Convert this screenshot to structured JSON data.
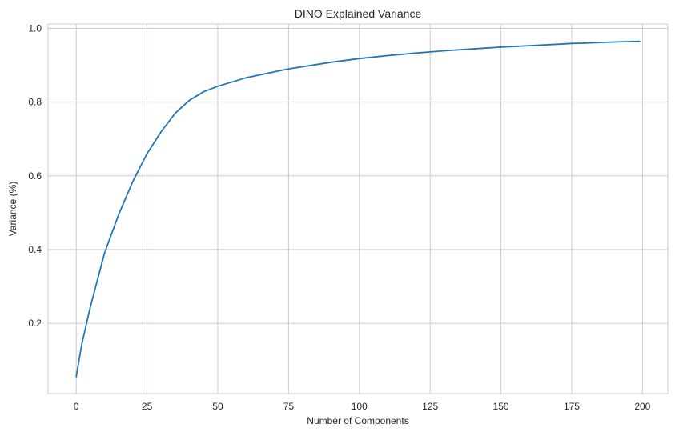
{
  "chart_data": {
    "type": "line",
    "title": "DINO Explained Variance",
    "xlabel": "Number of Components",
    "ylabel": "Variance (%)",
    "xlim": [
      -9.95,
      208.95
    ],
    "ylim": [
      0.0092,
      1.0118
    ],
    "xticks": [
      0,
      25,
      50,
      75,
      100,
      125,
      150,
      175,
      200
    ],
    "yticks": [
      0.2,
      0.4,
      0.6,
      0.8,
      1.0
    ],
    "ytick_labels": [
      "0.2",
      "0.4",
      "0.6",
      "0.8",
      "1.0"
    ],
    "grid": true,
    "series": [
      {
        "color": "#1f77b4",
        "x": [
          0,
          2,
          5,
          10,
          15,
          20,
          25,
          30,
          35,
          40,
          45,
          50,
          60,
          70,
          75,
          80,
          90,
          100,
          110,
          120,
          125,
          130,
          140,
          150,
          160,
          170,
          175,
          180,
          190,
          199
        ],
        "y": [
          0.055,
          0.145,
          0.245,
          0.39,
          0.495,
          0.585,
          0.66,
          0.72,
          0.77,
          0.805,
          0.828,
          0.843,
          0.866,
          0.882,
          0.89,
          0.896,
          0.908,
          0.918,
          0.926,
          0.933,
          0.936,
          0.939,
          0.944,
          0.949,
          0.953,
          0.957,
          0.959,
          0.96,
          0.963,
          0.965
        ]
      }
    ]
  }
}
